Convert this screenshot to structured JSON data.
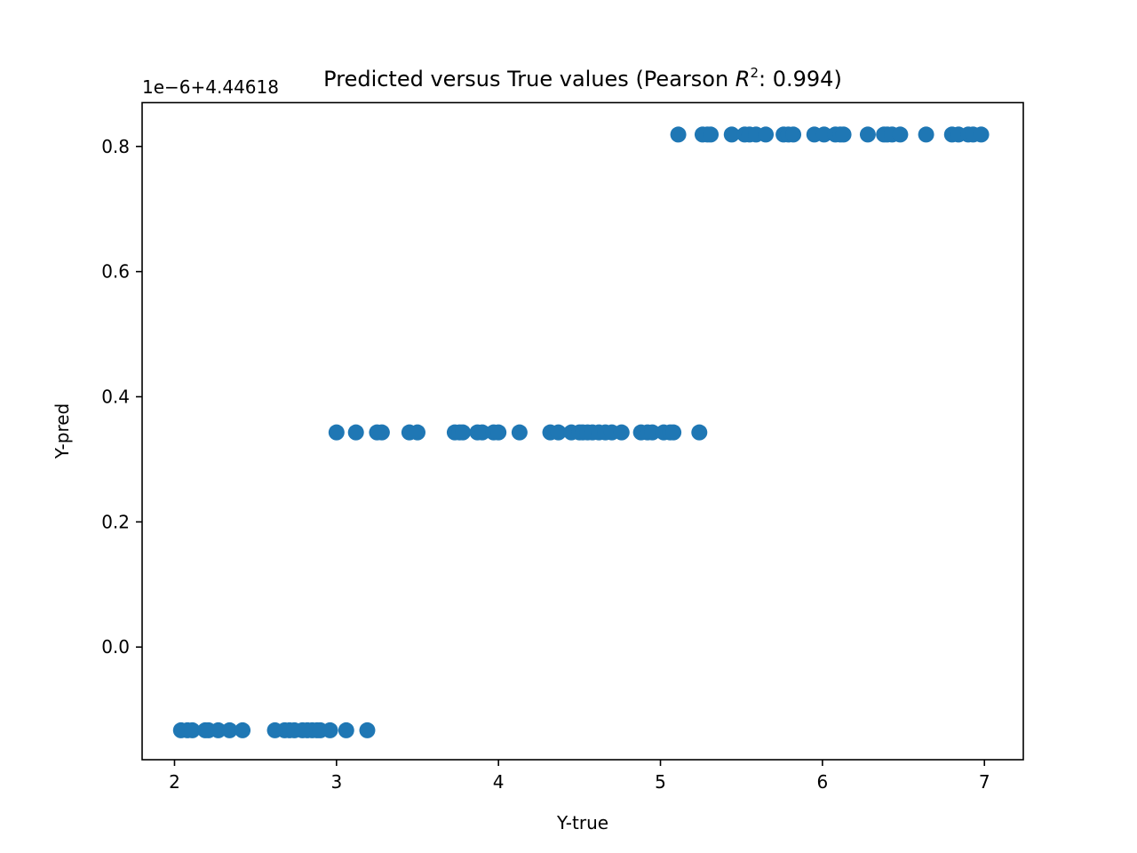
{
  "chart_data": {
    "type": "scatter",
    "title_prefix": "Predicted versus True values (Pearson ",
    "title_r": "R",
    "title_sup": "2",
    "title_suffix": ": 0.994)",
    "xlabel": "Y-true",
    "ylabel": "Y-pred",
    "offset_text": "1e−6+4.44618",
    "xlim": [
      1.8,
      7.24
    ],
    "ylim": [
      -0.18,
      0.87
    ],
    "xticks": [
      2,
      3,
      4,
      5,
      6,
      7
    ],
    "yticks": [
      0.0,
      0.2,
      0.4,
      0.6,
      0.8
    ],
    "ytick_labels": [
      "0.0",
      "0.2",
      "0.4",
      "0.6",
      "0.8"
    ],
    "grid": false,
    "marker_color": "#1f77b4",
    "points": {
      "level_low": {
        "y": -0.133,
        "x": [
          2.04,
          2.08,
          2.11,
          2.19,
          2.21,
          2.27,
          2.34,
          2.42,
          2.62,
          2.68,
          2.71,
          2.74,
          2.79,
          2.82,
          2.85,
          2.88,
          2.9,
          2.96,
          3.06,
          3.19
        ]
      },
      "level_mid": {
        "y": 0.343,
        "x": [
          3.0,
          3.12,
          3.25,
          3.28,
          3.45,
          3.5,
          3.73,
          3.76,
          3.78,
          3.87,
          3.9,
          3.97,
          4.0,
          4.13,
          4.32,
          4.37,
          4.45,
          4.5,
          4.52,
          4.55,
          4.58,
          4.62,
          4.66,
          4.7,
          4.76,
          4.88,
          4.92,
          4.95,
          5.02,
          5.06,
          5.08,
          5.24
        ]
      },
      "level_high": {
        "y": 0.819,
        "x": [
          5.11,
          5.26,
          5.29,
          5.31,
          5.44,
          5.52,
          5.55,
          5.59,
          5.65,
          5.76,
          5.79,
          5.82,
          5.95,
          6.01,
          6.08,
          6.11,
          6.13,
          6.28,
          6.38,
          6.4,
          6.43,
          6.48,
          6.64,
          6.8,
          6.84,
          6.9,
          6.93,
          6.98
        ]
      }
    }
  }
}
